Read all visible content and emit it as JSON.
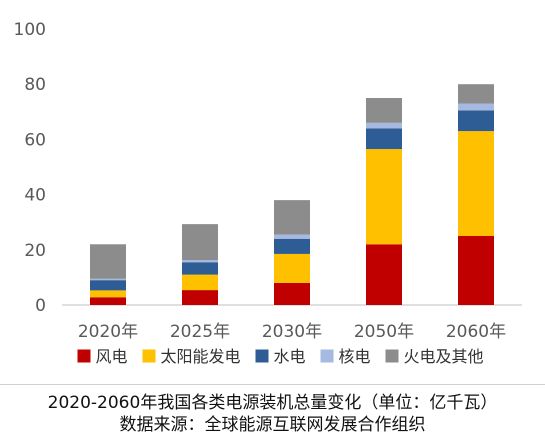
{
  "chart_data": {
    "type": "bar",
    "stacked": true,
    "categories": [
      "2020年",
      "2025年",
      "2030年",
      "2050年",
      "2060年"
    ],
    "series": [
      {
        "name": "风电",
        "color": "#C00000",
        "values": [
          2.8,
          5.4,
          8.0,
          22.0,
          25.0
        ]
      },
      {
        "name": "太阳能发电",
        "color": "#FFC000",
        "values": [
          2.5,
          5.6,
          10.5,
          34.5,
          38.0
        ]
      },
      {
        "name": "水电",
        "color": "#2E5C94",
        "values": [
          3.7,
          4.5,
          5.5,
          7.5,
          7.5
        ]
      },
      {
        "name": "核电",
        "color": "#A6B9E0",
        "values": [
          0.5,
          0.8,
          1.5,
          2.0,
          2.5
        ]
      },
      {
        "name": "火电及其他",
        "color": "#8C8C8C",
        "values": [
          12.5,
          13.0,
          12.5,
          9.0,
          7.0
        ]
      }
    ],
    "ylim": [
      0,
      100
    ],
    "yticks": [
      "0",
      "20",
      "40",
      "60",
      "80",
      "100"
    ],
    "grid": false,
    "legend_position": "bottom"
  },
  "caption": {
    "line1": "2020-2060年我国各类电源装机总量变化（单位：亿千瓦）",
    "line2": "数据来源：全球能源互联网发展合作组织"
  }
}
